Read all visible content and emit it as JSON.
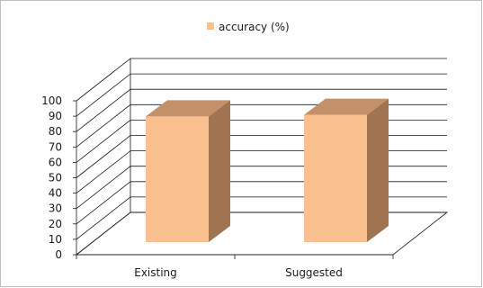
{
  "chart_data": {
    "type": "bar",
    "categories": [
      "Existing",
      "Suggested"
    ],
    "series": [
      {
        "name": "accuracy (%)",
        "values": [
          91,
          92
        ],
        "color": "#FAC090"
      }
    ],
    "title": "",
    "xlabel": "",
    "ylabel": "",
    "ylim": [
      0,
      100
    ],
    "yticks": [
      "0",
      "10",
      "20",
      "30",
      "40",
      "50",
      "60",
      "70",
      "80",
      "90",
      "100"
    ],
    "grid": true,
    "legend": "top-center",
    "style": "3d-column",
    "colors": {
      "front": "#FAC090",
      "side": "#A07450",
      "top": "#C4906A",
      "grid": "#1a1a1a"
    }
  }
}
